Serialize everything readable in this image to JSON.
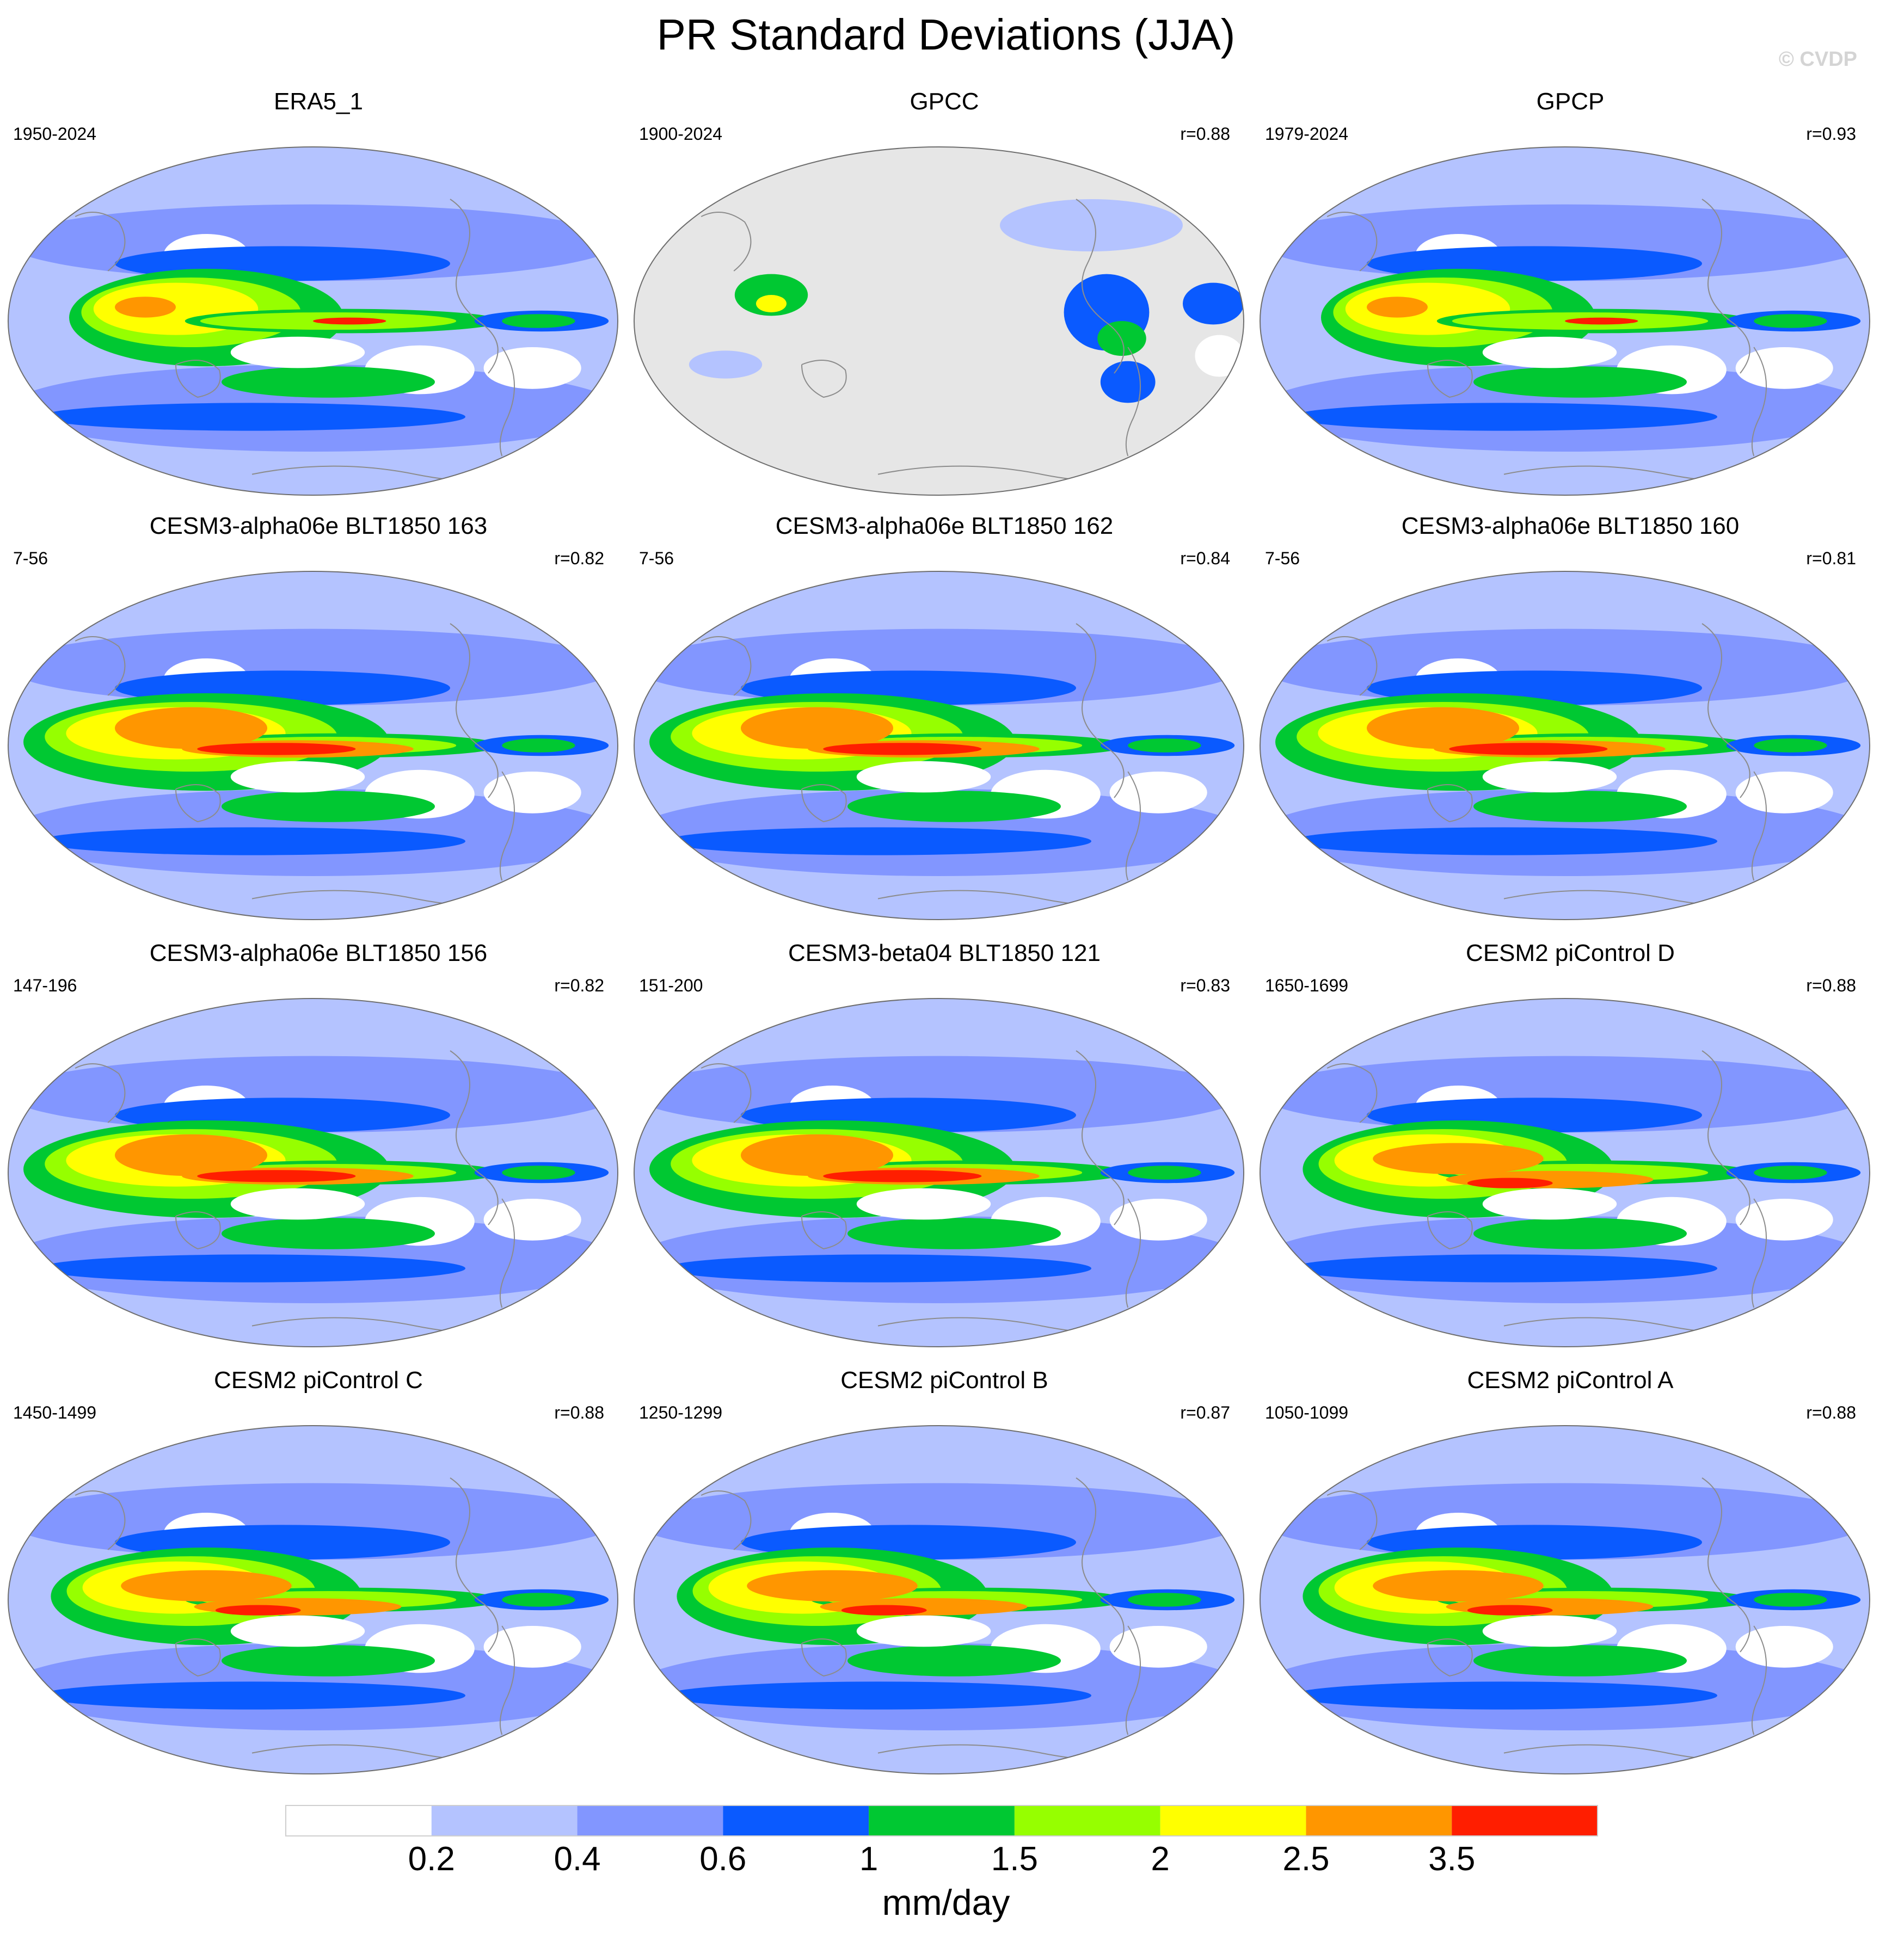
{
  "title": "PR Standard Deviations (JJA)",
  "credit": "© CVDP",
  "panels": [
    {
      "title": "ERA5_1",
      "years": "1950-2024",
      "corr": "",
      "variant": "ref",
      "land_only": false
    },
    {
      "title": "GPCC",
      "years": "1900-2024",
      "corr": "r=0.88",
      "variant": "ref",
      "land_only": true
    },
    {
      "title": "GPCP",
      "years": "1979-2024",
      "corr": "r=0.93",
      "variant": "obs",
      "land_only": false
    },
    {
      "title": "CESM3-alpha06e BLT1850 163",
      "years": "7-56",
      "corr": "r=0.82",
      "variant": "model",
      "land_only": false
    },
    {
      "title": "CESM3-alpha06e BLT1850 162",
      "years": "7-56",
      "corr": "r=0.84",
      "variant": "model",
      "land_only": false
    },
    {
      "title": "CESM3-alpha06e BLT1850 160",
      "years": "7-56",
      "corr": "r=0.81",
      "variant": "model",
      "land_only": false
    },
    {
      "title": "CESM3-alpha06e BLT1850 156",
      "years": "147-196",
      "corr": "r=0.82",
      "variant": "model",
      "land_only": false
    },
    {
      "title": "CESM3-beta04 BLT1850 121",
      "years": "151-200",
      "corr": "r=0.83",
      "variant": "model",
      "land_only": false
    },
    {
      "title": "CESM2 piControl D",
      "years": "1650-1699",
      "corr": "r=0.88",
      "variant": "cesm2",
      "land_only": false
    },
    {
      "title": "CESM2 piControl C",
      "years": "1450-1499",
      "corr": "r=0.88",
      "variant": "cesm2",
      "land_only": false
    },
    {
      "title": "CESM2 piControl B",
      "years": "1250-1299",
      "corr": "r=0.87",
      "variant": "cesm2",
      "land_only": false
    },
    {
      "title": "CESM2 piControl A",
      "years": "1050-1099",
      "corr": "r=0.88",
      "variant": "cesm2",
      "land_only": false
    }
  ],
  "colorbar": {
    "units": "mm/day",
    "labels": [
      "0.2",
      "0.4",
      "0.6",
      "1",
      "1.5",
      "2",
      "2.5",
      "3.5"
    ],
    "colors": [
      "#ffffff",
      "#b4c3ff",
      "#8296ff",
      "#0a5aff",
      "#00c832",
      "#96ff00",
      "#ffff00",
      "#ff9600",
      "#ff1e00"
    ],
    "missing_color": "#e6e6e6"
  }
}
